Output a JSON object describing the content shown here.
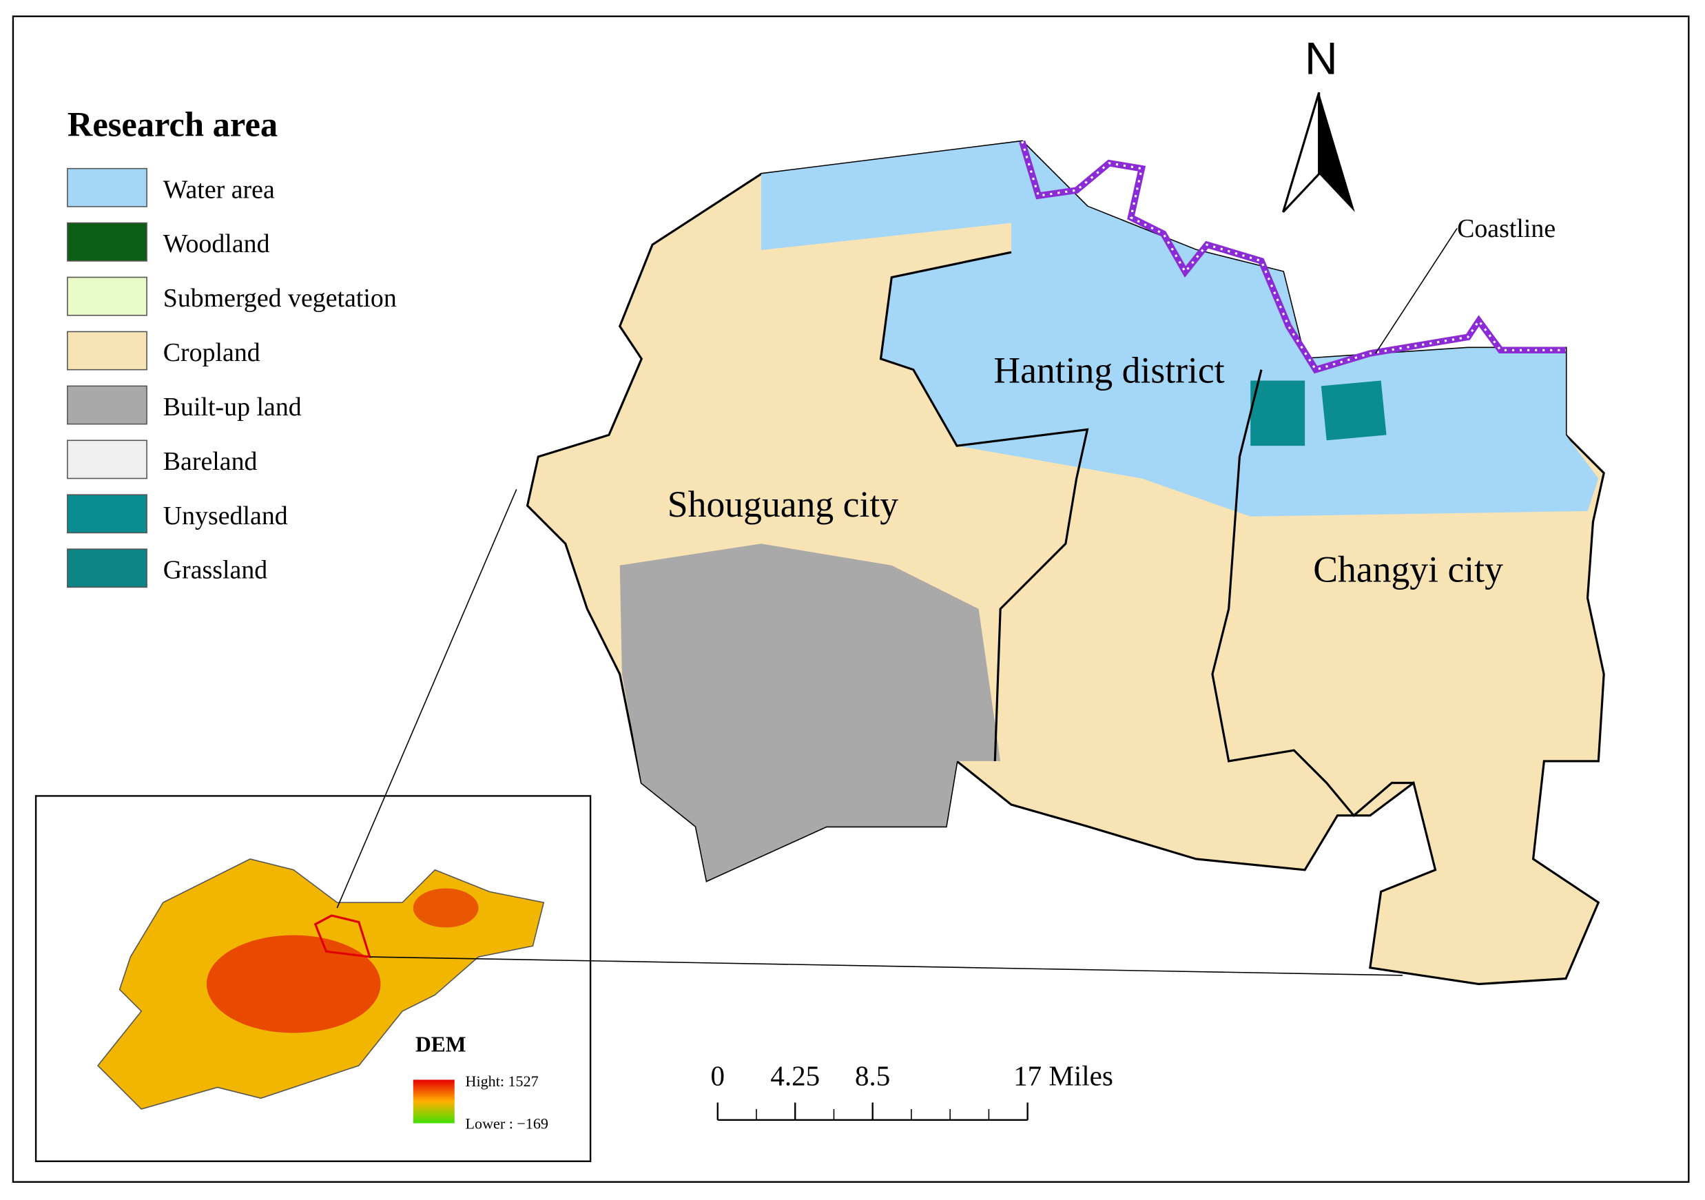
{
  "legend": {
    "title": "Research area",
    "items": [
      {
        "label": "Water area",
        "color": "#a3d6f7"
      },
      {
        "label": "Woodland",
        "color": "#0b5e14"
      },
      {
        "label": "Submerged vegetation",
        "color": "#e9fbc9"
      },
      {
        "label": "Cropland",
        "color": "#f8e3b4"
      },
      {
        "label": "Built-up land",
        "color": "#a9a9a9"
      },
      {
        "label": "Bareland",
        "color": "#efefef"
      },
      {
        "label": "Unysedland",
        "color": "#0a8c90"
      },
      {
        "label": "Grassland",
        "color": "#0d8585"
      }
    ]
  },
  "north": "N",
  "regions": [
    "Shouguang city",
    "Hanting district",
    "Changyi city"
  ],
  "coastline": "Coastline",
  "inset": {
    "title": "DEM",
    "high": "Hight: 1527",
    "low": "Lower : −169"
  },
  "scale_bar": {
    "ticks": [
      {
        "value": 0,
        "label": "0"
      },
      {
        "value": 4.25,
        "label": "4.25"
      },
      {
        "value": 8.5,
        "label": "8.5"
      },
      {
        "value": 17,
        "label": "17 Miles"
      }
    ],
    "range": [
      0,
      17
    ]
  }
}
